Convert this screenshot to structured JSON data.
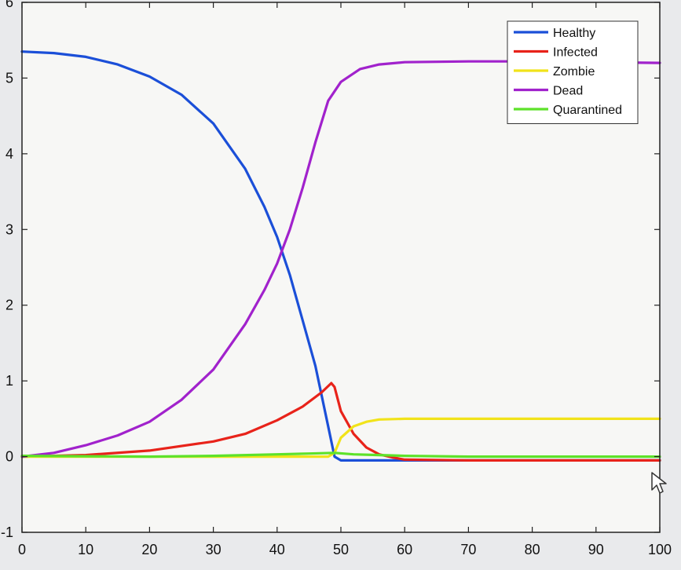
{
  "chart_data": {
    "type": "line",
    "title": "",
    "xlabel": "",
    "ylabel": "",
    "xlim": [
      0,
      100
    ],
    "ylim": [
      -1,
      6
    ],
    "x_ticks": [
      0,
      10,
      20,
      30,
      40,
      50,
      60,
      70,
      80,
      90,
      100
    ],
    "y_ticks": [
      -1,
      0,
      1,
      2,
      3,
      4,
      5,
      6
    ],
    "grid": false,
    "legend_position": "top-right",
    "series": [
      {
        "name": "Healthy",
        "color": "#1b4fd8",
        "points": [
          [
            0,
            5.35
          ],
          [
            5,
            5.33
          ],
          [
            10,
            5.28
          ],
          [
            15,
            5.18
          ],
          [
            20,
            5.02
          ],
          [
            25,
            4.78
          ],
          [
            30,
            4.4
          ],
          [
            35,
            3.8
          ],
          [
            38,
            3.3
          ],
          [
            40,
            2.9
          ],
          [
            42,
            2.4
          ],
          [
            44,
            1.8
          ],
          [
            46,
            1.2
          ],
          [
            48,
            0.4
          ],
          [
            49,
            0.0
          ],
          [
            50,
            -0.05
          ],
          [
            60,
            -0.05
          ],
          [
            70,
            -0.05
          ],
          [
            80,
            -0.05
          ],
          [
            90,
            -0.05
          ],
          [
            100,
            -0.05
          ]
        ]
      },
      {
        "name": "Infected",
        "color": "#e8231a",
        "points": [
          [
            0,
            0.0
          ],
          [
            10,
            0.02
          ],
          [
            20,
            0.08
          ],
          [
            30,
            0.2
          ],
          [
            35,
            0.3
          ],
          [
            40,
            0.48
          ],
          [
            44,
            0.66
          ],
          [
            47,
            0.85
          ],
          [
            48.5,
            0.97
          ],
          [
            49,
            0.92
          ],
          [
            50,
            0.6
          ],
          [
            52,
            0.3
          ],
          [
            54,
            0.12
          ],
          [
            56,
            0.03
          ],
          [
            58,
            -0.01
          ],
          [
            60,
            -0.04
          ],
          [
            70,
            -0.05
          ],
          [
            80,
            -0.05
          ],
          [
            90,
            -0.05
          ],
          [
            100,
            -0.05
          ]
        ]
      },
      {
        "name": "Zombie",
        "color": "#f1e31a",
        "points": [
          [
            0,
            0.0
          ],
          [
            20,
            0.0
          ],
          [
            40,
            0.0
          ],
          [
            48,
            0.0
          ],
          [
            49,
            0.05
          ],
          [
            50,
            0.25
          ],
          [
            52,
            0.4
          ],
          [
            54,
            0.46
          ],
          [
            56,
            0.49
          ],
          [
            60,
            0.5
          ],
          [
            70,
            0.5
          ],
          [
            80,
            0.5
          ],
          [
            90,
            0.5
          ],
          [
            100,
            0.5
          ]
        ]
      },
      {
        "name": "Dead",
        "color": "#a122cc",
        "points": [
          [
            0,
            0.0
          ],
          [
            5,
            0.05
          ],
          [
            10,
            0.15
          ],
          [
            15,
            0.28
          ],
          [
            20,
            0.46
          ],
          [
            25,
            0.75
          ],
          [
            30,
            1.15
          ],
          [
            35,
            1.75
          ],
          [
            38,
            2.2
          ],
          [
            40,
            2.55
          ],
          [
            42,
            3.0
          ],
          [
            44,
            3.55
          ],
          [
            46,
            4.15
          ],
          [
            48,
            4.7
          ],
          [
            50,
            4.95
          ],
          [
            53,
            5.12
          ],
          [
            56,
            5.18
          ],
          [
            60,
            5.21
          ],
          [
            70,
            5.22
          ],
          [
            80,
            5.22
          ],
          [
            90,
            5.21
          ],
          [
            100,
            5.2
          ]
        ]
      },
      {
        "name": "Quarantined",
        "color": "#5de22a",
        "points": [
          [
            0,
            0.01
          ],
          [
            20,
            0.0
          ],
          [
            30,
            0.01
          ],
          [
            40,
            0.03
          ],
          [
            45,
            0.04
          ],
          [
            49,
            0.05
          ],
          [
            52,
            0.03
          ],
          [
            56,
            0.02
          ],
          [
            60,
            0.01
          ],
          [
            70,
            0.0
          ],
          [
            80,
            0.0
          ],
          [
            90,
            0.0
          ],
          [
            100,
            0.0
          ]
        ]
      }
    ]
  }
}
